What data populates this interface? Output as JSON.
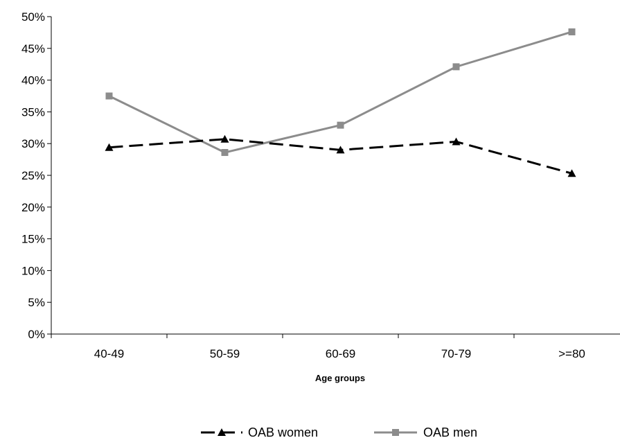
{
  "chart_data": {
    "type": "line",
    "title": "",
    "xlabel": "Age groups",
    "ylabel": "",
    "categories": [
      "40-49",
      "50-59",
      "60-69",
      "70-79",
      ">=80"
    ],
    "ylim": [
      0,
      50
    ],
    "y_ticks": [
      "0%",
      "5%",
      "10%",
      "15%",
      "20%",
      "25%",
      "30%",
      "35%",
      "40%",
      "45%",
      "50%"
    ],
    "grid": false,
    "legend_position": "bottom",
    "series": [
      {
        "name": "OAB women",
        "values": [
          29.4,
          30.7,
          29.0,
          30.3,
          25.3
        ],
        "color": "#000000",
        "line_style": "dashed",
        "marker": "triangle"
      },
      {
        "name": "OAB men",
        "values": [
          37.5,
          28.6,
          32.9,
          42.1,
          47.6
        ],
        "color": "#8c8c8c",
        "line_style": "solid",
        "marker": "square"
      }
    ]
  }
}
